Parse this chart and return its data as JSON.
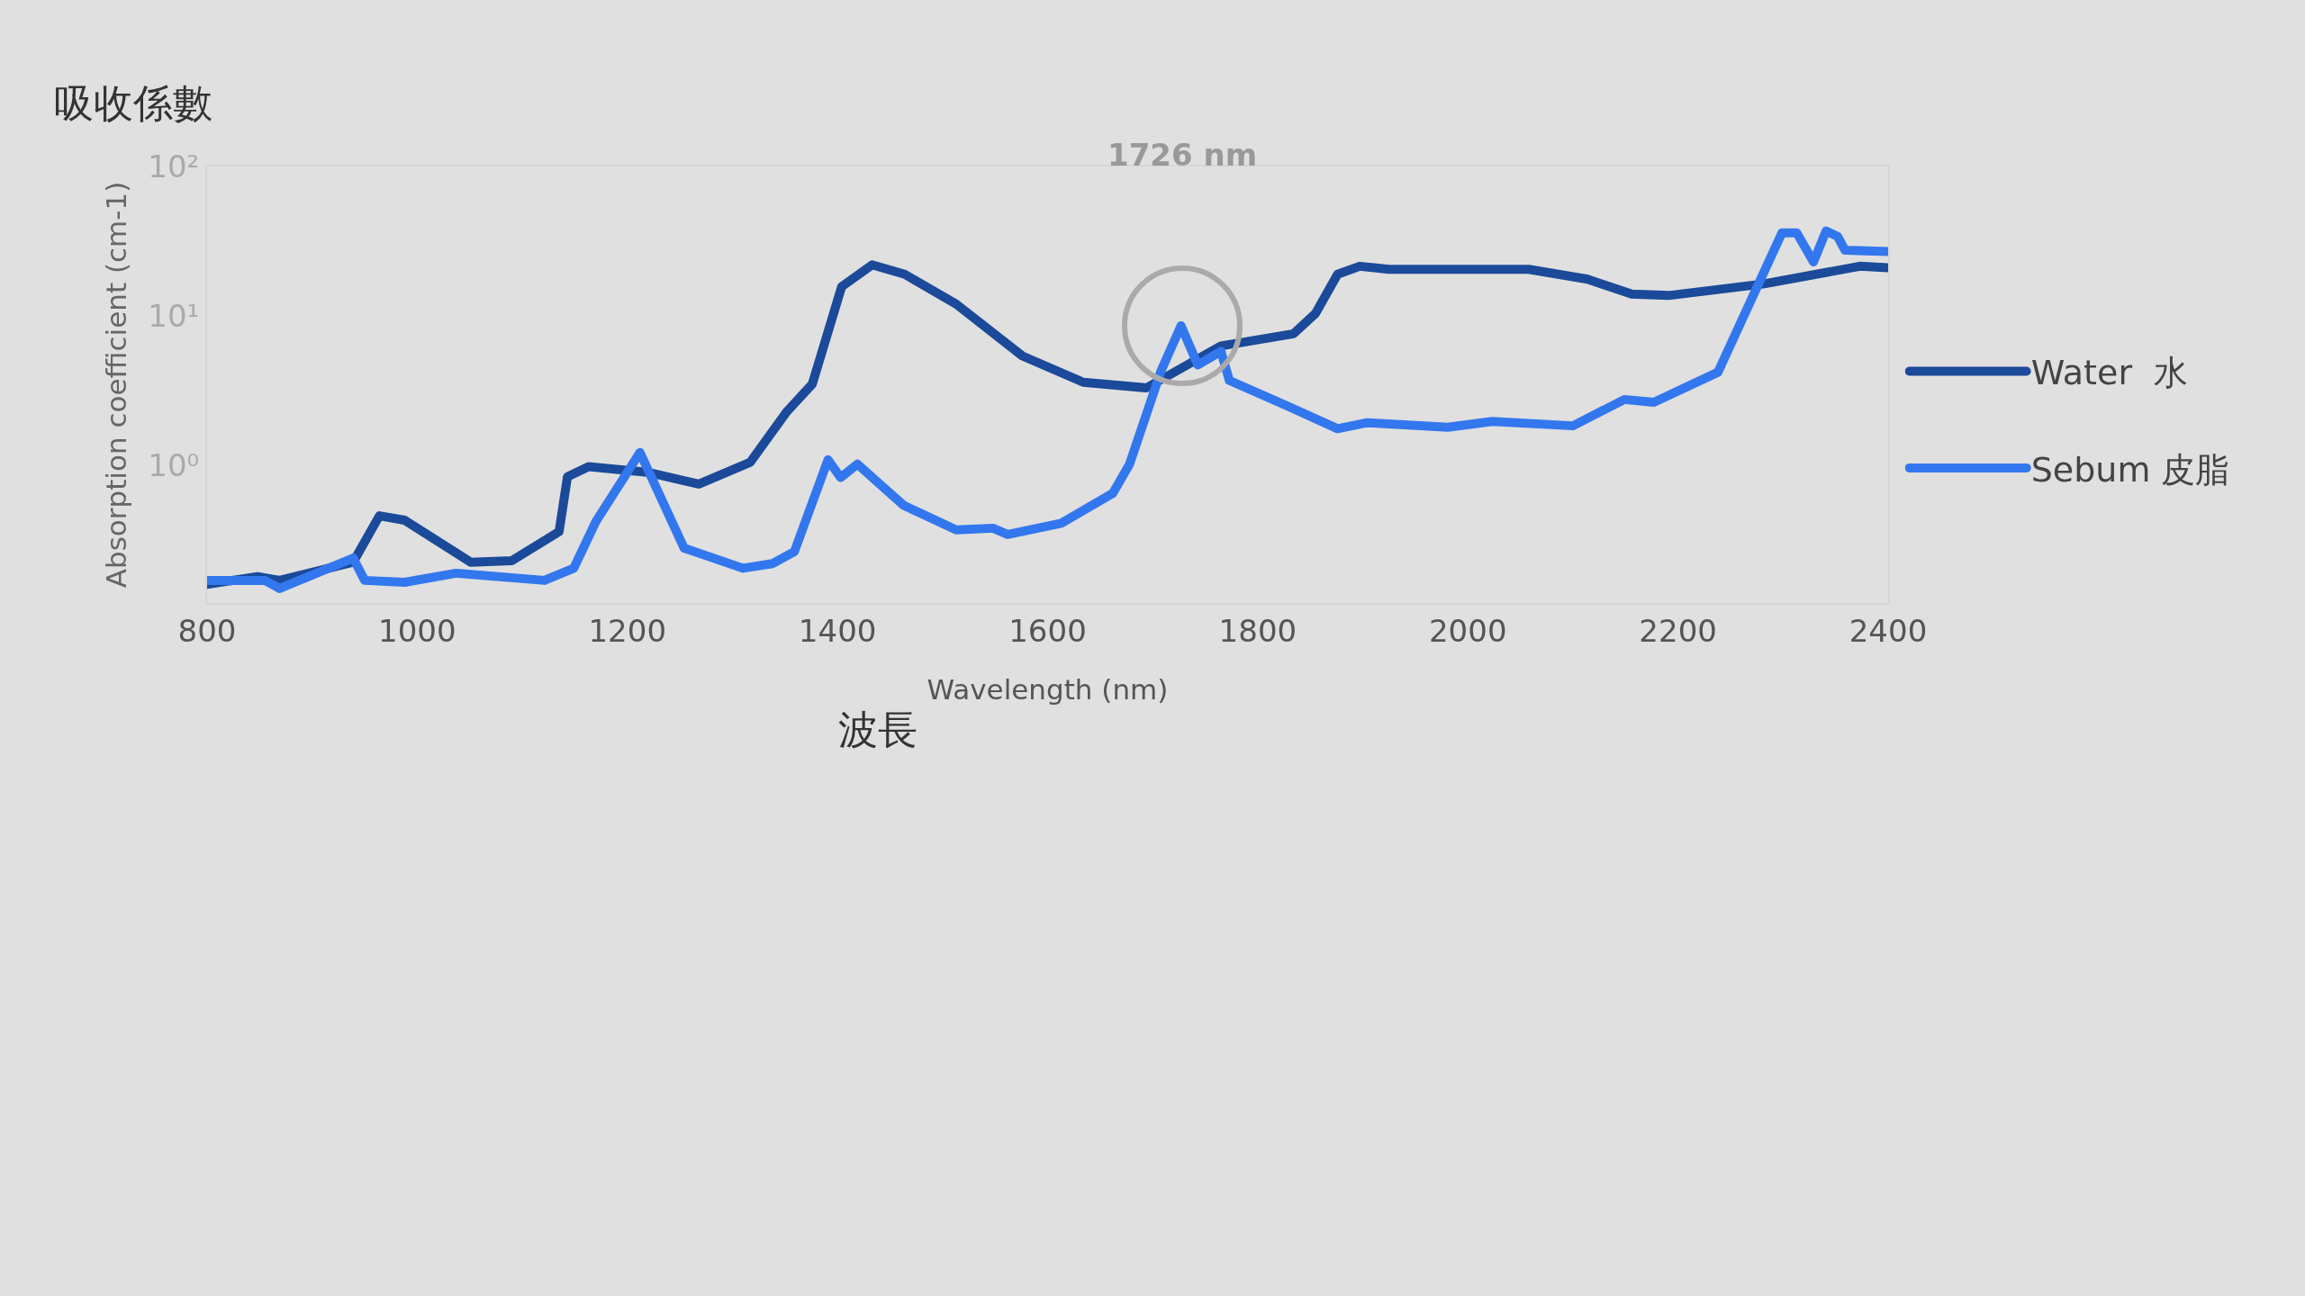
{
  "chart_data": {
    "type": "line",
    "title": "吸收係數",
    "xlabel": "Wavelength (nm)",
    "ylabel": "Absorption coefficient (cm-1)",
    "annotations": [
      "1726 nm",
      "波長"
    ],
    "log": "y",
    "xlim": [
      800,
      2400
    ],
    "xticks": [
      800,
      1000,
      1200,
      1400,
      1600,
      1800,
      2000,
      2200,
      2400
    ],
    "ylim": [
      0.12,
      100
    ],
    "yticks": [
      {
        "value": 1,
        "label": "10⁰"
      },
      {
        "value": 10,
        "label": "10¹"
      },
      {
        "value": 100,
        "label": "10²"
      }
    ],
    "grid": false,
    "legend": "right",
    "marker": "none",
    "line_style": "solid",
    "series": [
      {
        "name": "Water  水",
        "color": "#1a4a99",
        "x": [
          800,
          848,
          869,
          939,
          964,
          988,
          1051,
          1090,
          1135,
          1143,
          1163,
          1219,
          1268,
          1317,
          1352,
          1376,
          1404,
          1433,
          1464,
          1513,
          1576,
          1634,
          1694,
          1765,
          1834,
          1855,
          1876,
          1897,
          1925,
          2058,
          2114,
          2156,
          2191,
          2282,
          2373,
          2400
        ],
        "values": [
          0.16,
          0.18,
          0.17,
          0.225,
          0.46,
          0.43,
          0.225,
          0.23,
          0.36,
          0.84,
          0.98,
          0.9,
          0.75,
          1.05,
          2.3,
          3.5,
          15.7,
          22,
          19,
          12,
          5.4,
          3.6,
          3.3,
          6.3,
          7.6,
          10.4,
          19,
          21.5,
          20.5,
          20.5,
          17.6,
          14,
          13.7,
          16.4,
          21.5,
          21
        ]
      },
      {
        "name": "Sebum 皮脂",
        "color": "#3377ee",
        "x": [
          800,
          855,
          869,
          939,
          950,
          988,
          1037,
          1121,
          1149,
          1170,
          1212,
          1254,
          1310,
          1338,
          1359,
          1391,
          1403,
          1419,
          1463,
          1513,
          1548,
          1562,
          1613,
          1662,
          1678,
          1708,
          1727,
          1743,
          1765,
          1773,
          1828,
          1876,
          1904,
          1981,
          2023,
          2100,
          2149,
          2177,
          2238,
          2299,
          2313,
          2329,
          2341,
          2352,
          2359,
          2400
        ],
        "values": [
          0.17,
          0.17,
          0.15,
          0.24,
          0.17,
          0.165,
          0.19,
          0.17,
          0.205,
          0.42,
          1.22,
          0.28,
          0.205,
          0.22,
          0.265,
          1.09,
          0.83,
          1.02,
          0.54,
          0.37,
          0.38,
          0.345,
          0.41,
          0.65,
          1.02,
          4.3,
          8.6,
          4.7,
          5.8,
          3.7,
          2.5,
          1.76,
          1.93,
          1.8,
          1.97,
          1.84,
          2.76,
          2.64,
          4.2,
          36,
          36,
          23,
          37,
          34,
          27.5,
          27
        ]
      }
    ]
  }
}
